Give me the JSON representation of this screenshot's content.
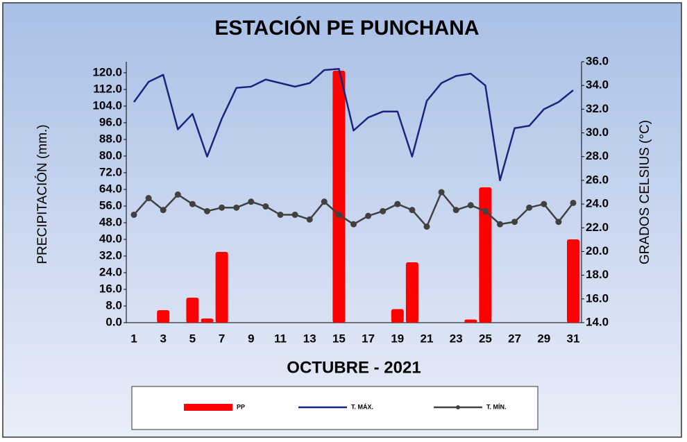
{
  "chart_data": {
    "type": "bar-line",
    "title": "ESTACIÓN PE PUNCHANA",
    "xlabel": "OCTUBRE - 2021",
    "ylabel": "PRECIPITACIÓN (mm.)",
    "y2label": "GRADOS CELSIUS (°C)",
    "categories": [
      "1",
      null,
      "3",
      null,
      "5",
      null,
      "7",
      null,
      "9",
      null,
      "11",
      null,
      "13",
      null,
      "15",
      null,
      "17",
      null,
      "19",
      null,
      "21",
      null,
      "23",
      null,
      "25",
      null,
      "27",
      null,
      "29",
      null,
      "31"
    ],
    "series": [
      {
        "name": "PP",
        "type": "bar",
        "color": "#ff0000",
        "values": [
          0,
          0,
          6,
          0,
          12,
          2,
          34,
          0,
          0,
          0,
          0,
          0,
          0,
          0,
          121,
          0,
          0,
          0,
          6.5,
          29,
          0,
          0,
          0,
          1.5,
          65,
          0,
          0,
          0,
          0,
          0,
          40
        ]
      },
      {
        "name": "T. MÁX.",
        "type": "line",
        "axis": "y2",
        "color": "#1a237e",
        "values": [
          32.6,
          34.3,
          34.9,
          30.3,
          31.6,
          28.0,
          31.2,
          33.8,
          33.9,
          34.5,
          34.2,
          33.9,
          34.2,
          35.3,
          35.4,
          30.2,
          31.3,
          31.8,
          31.8,
          28.0,
          32.7,
          34.2,
          34.8,
          35.0,
          34.0,
          26.0,
          30.4,
          30.6,
          32.0,
          32.6,
          33.6
        ]
      },
      {
        "name": "T. MÍN.",
        "type": "line",
        "axis": "y2",
        "color": "#404040",
        "marker": true,
        "values": [
          23.1,
          24.5,
          23.5,
          24.8,
          24.0,
          23.4,
          23.7,
          23.7,
          24.2,
          23.8,
          23.1,
          23.1,
          22.7,
          24.2,
          23.1,
          22.3,
          23.0,
          23.4,
          24.0,
          23.5,
          22.1,
          25.0,
          23.5,
          23.9,
          23.4,
          22.3,
          22.5,
          23.7,
          24.0,
          22.5,
          24.1
        ]
      }
    ],
    "ylim": [
      0,
      125.3
    ],
    "yticks": [
      {
        "value": 0,
        "label": "0.0"
      },
      {
        "value": 8,
        "label": "8.0"
      },
      {
        "value": 16,
        "label": "16.0"
      },
      {
        "value": 24,
        "label": "24.0"
      },
      {
        "value": 32,
        "label": "32.0"
      },
      {
        "value": 40,
        "label": "40.0"
      },
      {
        "value": 48,
        "label": "48.0"
      },
      {
        "value": 56,
        "label": "56.0"
      },
      {
        "value": 64,
        "label": "64.0"
      },
      {
        "value": 72,
        "label": "72.0"
      },
      {
        "value": 80,
        "label": "80.0"
      },
      {
        "value": 88,
        "label": "88.0"
      },
      {
        "value": 96,
        "label": "96.0"
      },
      {
        "value": 104,
        "label": "104.0"
      },
      {
        "value": 112,
        "label": "112.0"
      },
      {
        "value": 120,
        "label": "120.0"
      }
    ],
    "y2lim": [
      14,
      36
    ],
    "y2ticks": [
      {
        "value": 14,
        "label": "14.0"
      },
      {
        "value": 16,
        "label": "16.0"
      },
      {
        "value": 18,
        "label": "18.0"
      },
      {
        "value": 20,
        "label": "20.0"
      },
      {
        "value": 22,
        "label": "22.0"
      },
      {
        "value": 24,
        "label": "24.0"
      },
      {
        "value": 26,
        "label": "26.0"
      },
      {
        "value": 28,
        "label": "28.0"
      },
      {
        "value": 30,
        "label": "30.0"
      },
      {
        "value": 32,
        "label": "32.0"
      },
      {
        "value": 34,
        "label": "34.0"
      },
      {
        "value": 36,
        "label": "36.0"
      }
    ],
    "legend": "bottom"
  }
}
